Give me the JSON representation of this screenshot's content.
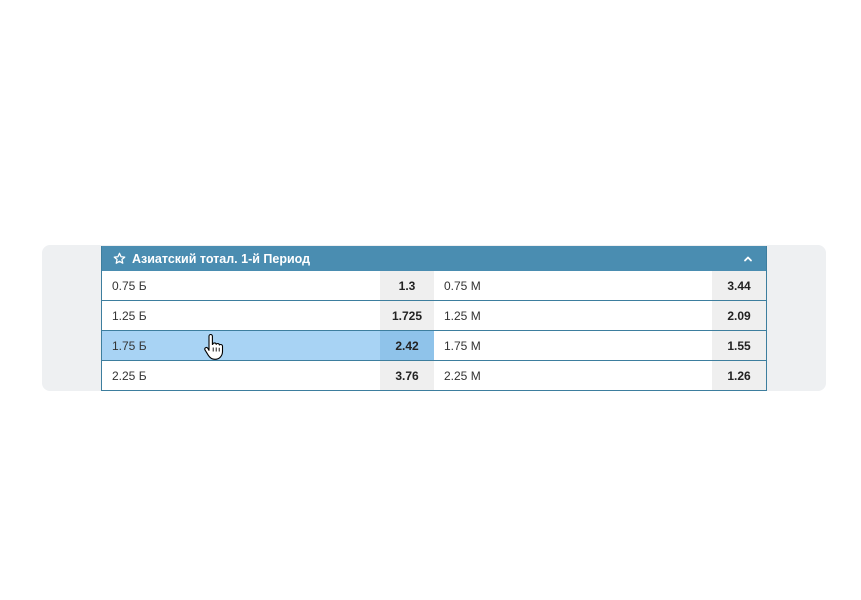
{
  "market": {
    "title": "Азиатский тотал. 1-й Период",
    "icons": {
      "favorite": "star-icon",
      "collapse": "chevron-up-icon"
    },
    "rows": [
      {
        "left": {
          "label": "0.75 Б",
          "odds": "1.3"
        },
        "right": {
          "label": "0.75 М",
          "odds": "3.44"
        }
      },
      {
        "left": {
          "label": "1.25 Б",
          "odds": "1.725"
        },
        "right": {
          "label": "1.25 М",
          "odds": "2.09"
        }
      },
      {
        "left": {
          "label": "1.75 Б",
          "odds": "2.42"
        },
        "right": {
          "label": "1.75 М",
          "odds": "1.55"
        }
      },
      {
        "left": {
          "label": "2.25 Б",
          "odds": "3.76"
        },
        "right": {
          "label": "2.25 М",
          "odds": "1.26"
        }
      }
    ]
  },
  "colors": {
    "header": "#4a8db1",
    "hover": "#a8d3f4",
    "odds_bg": "#efefef"
  }
}
